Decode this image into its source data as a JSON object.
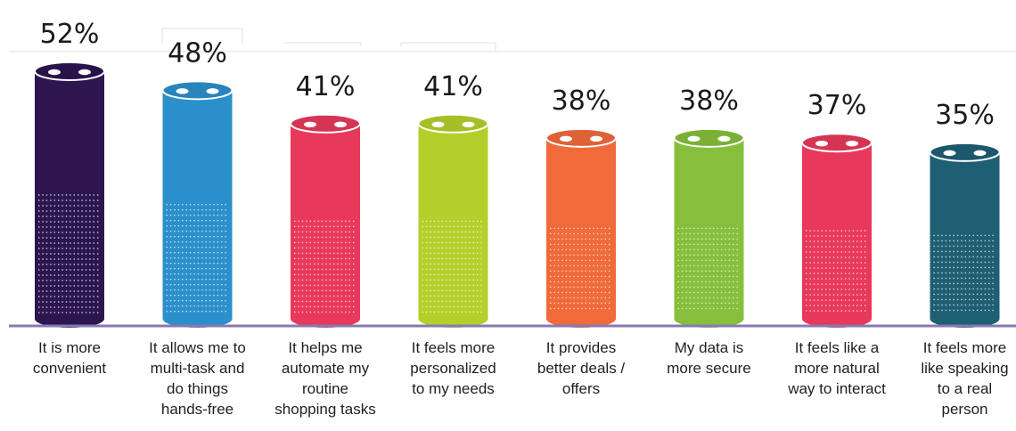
{
  "chart_data": {
    "type": "bar",
    "ylim": [
      0,
      52
    ],
    "grid": false,
    "categories": [
      [
        "It is more",
        "convenient"
      ],
      [
        "It allows me to",
        "multi-task and",
        "do things",
        "hands-free"
      ],
      [
        "It helps me",
        "automate my",
        "routine",
        "shopping tasks"
      ],
      [
        "It feels more",
        "personalized",
        "to my needs"
      ],
      [
        "It provides",
        "better deals /",
        "offers"
      ],
      [
        "My data is",
        "more secure"
      ],
      [
        "It feels like a",
        "more natural",
        "way to interact"
      ],
      [
        "It feels more",
        "like speaking",
        "to a real",
        "person"
      ]
    ],
    "values": [
      52,
      48,
      41,
      41,
      38,
      38,
      37,
      35
    ],
    "value_labels": [
      "52%",
      "48%",
      "41%",
      "41%",
      "38%",
      "38%",
      "37%",
      "35%"
    ],
    "colors": [
      "#2d1550",
      "#2b8fcb",
      "#e8395a",
      "#b5cf2a",
      "#f06a3a",
      "#86bf3b",
      "#e8395a",
      "#1e5f74"
    ],
    "baseline_color": "#8878b0"
  }
}
